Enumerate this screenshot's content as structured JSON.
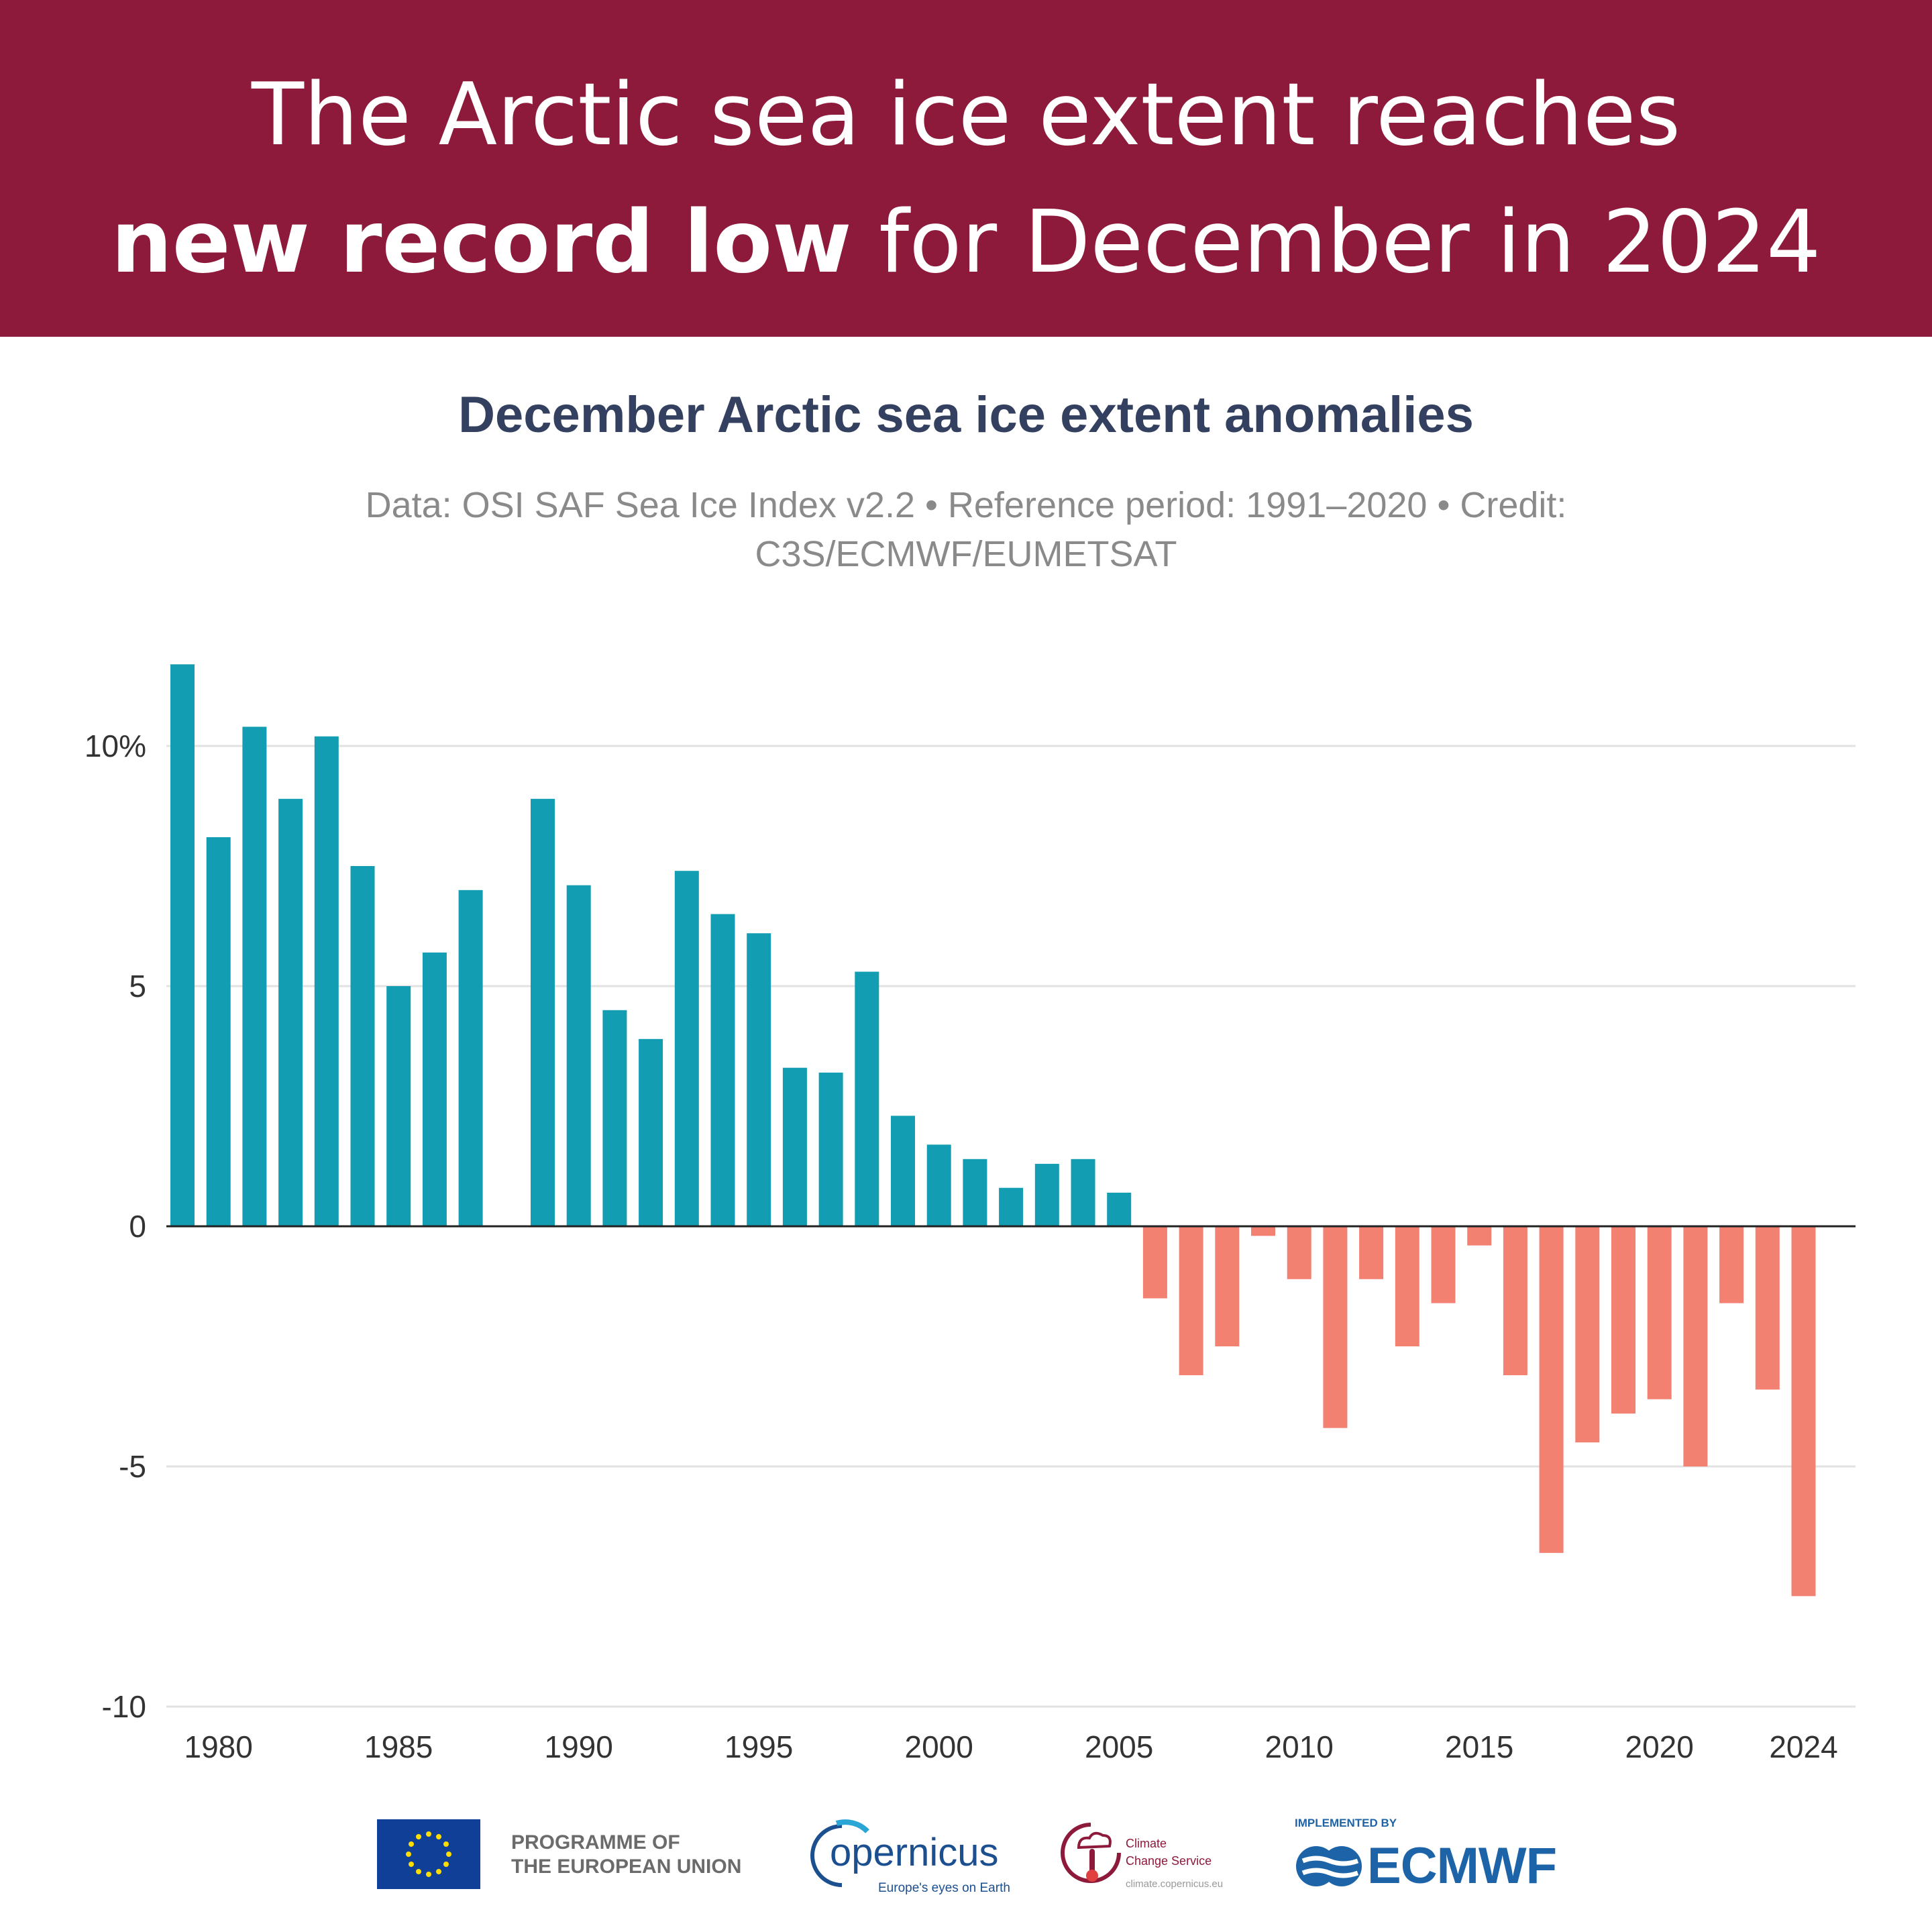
{
  "banner": {
    "line1": "The Arctic sea ice extent reaches",
    "line2_bold": "new record low",
    "line2_rest": " for December in 2024"
  },
  "colors": {
    "banner": "#8e1a3b",
    "positive": "#129db3",
    "negative": "#f38171",
    "title": "#34405f",
    "subtitle": "#8a8a8a"
  },
  "chart_data": {
    "type": "bar",
    "title": "December Arctic sea ice extent anomalies",
    "subtitle_line1": "Data: OSI SAF Sea Ice Index v2.2 • Reference period: 1991–2020 • Credit:",
    "subtitle_line2": "C3S/ECMWF/EUMETSAT",
    "xlabel": "",
    "ylabel": "",
    "ylim": [
      -10,
      12
    ],
    "y_ticks": [
      {
        "value": 10,
        "label": "10%"
      },
      {
        "value": 5,
        "label": "5"
      },
      {
        "value": 0,
        "label": "0"
      },
      {
        "value": -5,
        "label": "-5"
      },
      {
        "value": -10,
        "label": "-10"
      }
    ],
    "x_ticks": [
      1980,
      1985,
      1990,
      1995,
      2000,
      2005,
      2010,
      2015,
      2020,
      2024
    ],
    "grid": "horizontal",
    "x": [
      1979,
      1980,
      1981,
      1982,
      1983,
      1984,
      1985,
      1986,
      1987,
      1988,
      1989,
      1990,
      1991,
      1992,
      1993,
      1994,
      1995,
      1996,
      1997,
      1998,
      1999,
      2000,
      2001,
      2002,
      2003,
      2004,
      2005,
      2006,
      2007,
      2008,
      2009,
      2010,
      2011,
      2012,
      2013,
      2014,
      2015,
      2016,
      2017,
      2018,
      2019,
      2020,
      2021,
      2022,
      2023,
      2024
    ],
    "values": [
      11.7,
      8.1,
      10.4,
      8.9,
      10.2,
      7.5,
      5.0,
      5.7,
      7.0,
      null,
      8.9,
      7.1,
      4.5,
      3.9,
      7.4,
      6.5,
      6.1,
      3.3,
      3.2,
      5.3,
      2.3,
      1.7,
      1.4,
      0.8,
      1.3,
      1.4,
      0.7,
      -1.5,
      -3.1,
      -2.5,
      -0.2,
      -1.1,
      -4.2,
      -1.1,
      -2.5,
      -1.6,
      -0.4,
      -3.1,
      -6.8,
      -4.5,
      -3.9,
      -3.6,
      -5.0,
      -1.6,
      -3.4,
      -7.7
    ]
  },
  "logos": {
    "eu_line1": "PROGRAMME OF",
    "eu_line2": "THE EUROPEAN UNION",
    "copernicus": "opernicus",
    "copernicus_tagline": "Europe's eyes on Earth",
    "c3s_line1": "Climate",
    "c3s_line2": "Change Service",
    "c3s_url": "climate.copernicus.eu",
    "implemented_by": "IMPLEMENTED BY",
    "ecmwf": "ECMWF"
  }
}
